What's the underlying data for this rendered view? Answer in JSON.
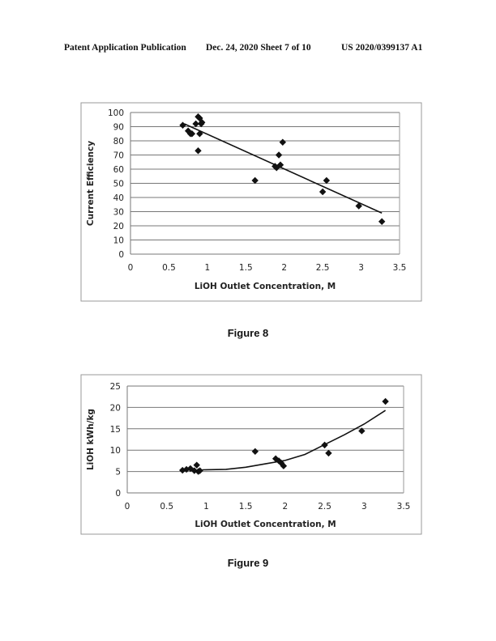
{
  "header": {
    "publication": "Patent Application Publication",
    "date_sheet": "Dec. 24, 2020  Sheet 7 of 10",
    "number": "US 2020/0399137 A1"
  },
  "figures": [
    {
      "label": "Figure 8"
    },
    {
      "label": "Figure 9"
    }
  ],
  "chart_data": [
    {
      "type": "scatter",
      "xlabel": "LiOH Outlet Concentration, M",
      "ylabel": "Current Efficiency",
      "xlim": [
        0,
        3.5
      ],
      "ylim": [
        0,
        100
      ],
      "xticks": [
        "0",
        "0.5",
        "1",
        "1.5",
        "2",
        "2.5",
        "3",
        "3.5"
      ],
      "yticks": [
        "0",
        "10",
        "20",
        "30",
        "40",
        "50",
        "60",
        "70",
        "80",
        "90",
        "100"
      ],
      "grid": "horizontal",
      "marker": "diamond",
      "points": [
        [
          0.68,
          91
        ],
        [
          0.75,
          87
        ],
        [
          0.78,
          85
        ],
        [
          0.8,
          85
        ],
        [
          0.85,
          92
        ],
        [
          0.88,
          97
        ],
        [
          0.9,
          96
        ],
        [
          0.92,
          92
        ],
        [
          0.93,
          93
        ],
        [
          0.9,
          85
        ],
        [
          0.88,
          73
        ],
        [
          1.62,
          52
        ],
        [
          1.88,
          62
        ],
        [
          1.9,
          61
        ],
        [
          1.93,
          70
        ],
        [
          1.95,
          63
        ],
        [
          1.98,
          79
        ],
        [
          2.5,
          44
        ],
        [
          2.55,
          52
        ],
        [
          2.97,
          34
        ],
        [
          3.27,
          23
        ]
      ],
      "trendline": {
        "type": "linear",
        "points": [
          [
            0.7,
            92
          ],
          [
            3.27,
            29
          ]
        ]
      }
    },
    {
      "type": "scatter",
      "xlabel": "LiOH Outlet Concentration, M",
      "ylabel": "LiOH kWh/kg",
      "xlim": [
        0,
        3.5
      ],
      "ylim": [
        0,
        25
      ],
      "xticks": [
        "0",
        "0.5",
        "1",
        "1.5",
        "2",
        "2.5",
        "3",
        "3.5"
      ],
      "yticks": [
        "0",
        "5",
        "10",
        "15",
        "20",
        "25"
      ],
      "grid": "horizontal",
      "marker": "diamond",
      "points": [
        [
          0.7,
          5.3
        ],
        [
          0.75,
          5.5
        ],
        [
          0.8,
          5.7
        ],
        [
          0.85,
          5.2
        ],
        [
          0.88,
          6.5
        ],
        [
          0.9,
          5.0
        ],
        [
          0.92,
          5.2
        ],
        [
          1.62,
          9.7
        ],
        [
          1.88,
          8.0
        ],
        [
          1.92,
          7.5
        ],
        [
          1.95,
          7.0
        ],
        [
          1.98,
          6.3
        ],
        [
          2.5,
          11.2
        ],
        [
          2.55,
          9.3
        ],
        [
          2.97,
          14.5
        ],
        [
          3.27,
          21.4
        ]
      ],
      "trendline": {
        "type": "polynomial",
        "points": [
          [
            0.95,
            5.4
          ],
          [
            1.25,
            5.5
          ],
          [
            1.5,
            6.0
          ],
          [
            1.75,
            6.8
          ],
          [
            2.0,
            7.6
          ],
          [
            2.25,
            9.0
          ],
          [
            2.5,
            11.3
          ],
          [
            2.75,
            13.6
          ],
          [
            3.0,
            16.1
          ],
          [
            3.27,
            19.3
          ]
        ]
      }
    }
  ]
}
